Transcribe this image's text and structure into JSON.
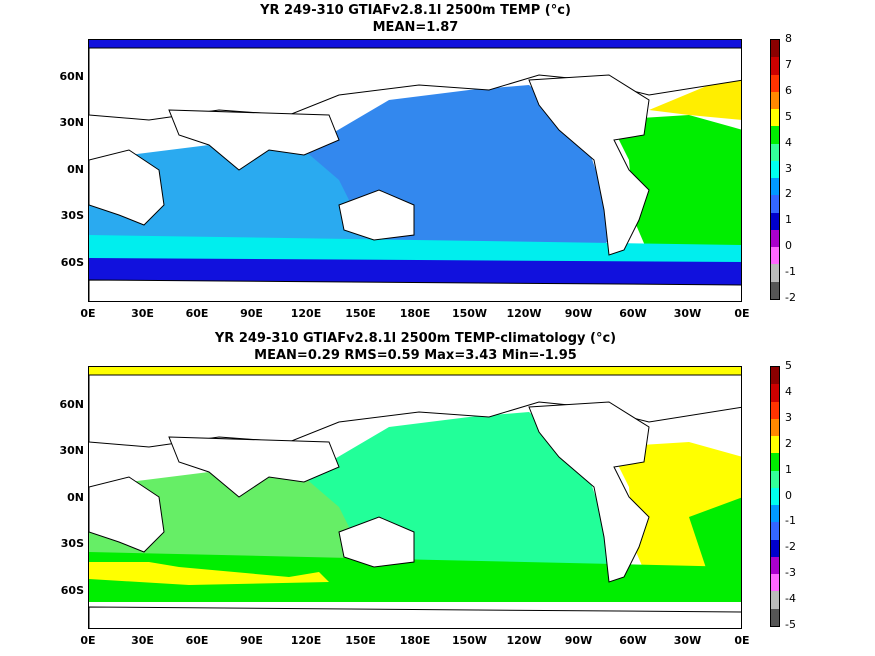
{
  "maps": [
    {
      "title_line1": "YR 249-310 GTIAFv2.8.1l 2500m TEMP (°c)",
      "title_line2": "MEAN=1.87",
      "lat_labels": [
        "60N",
        "30N",
        "0N",
        "30S",
        "60S"
      ],
      "lon_labels": [
        "0E",
        "30E",
        "60E",
        "90E",
        "120E",
        "150E",
        "180E",
        "150W",
        "120W",
        "90W",
        "60W",
        "30W",
        "0E"
      ],
      "colorbar_labels": [
        "8",
        "7",
        "6",
        "5",
        "4",
        "3",
        "2",
        "1",
        "0",
        "-1",
        "-2"
      ],
      "colorbar_colors": [
        "#8b0000",
        "#cc0000",
        "#ff3300",
        "#ff8800",
        "#ffff00",
        "#00ee00",
        "#33ff99",
        "#00ffee",
        "#0099ff",
        "#3366ff",
        "#0000cc",
        "#aa00cc",
        "#ff66ff",
        "#bbbbbb",
        "#555555"
      ]
    },
    {
      "title_line1": "YR 249-310 GTIAFv2.8.1l 2500m TEMP-climatology (°c)",
      "title_line2": "MEAN=0.29   RMS=0.59   Max=3.43   Min=-1.95",
      "lat_labels": [
        "60N",
        "30N",
        "0N",
        "30S",
        "60S"
      ],
      "lon_labels": [
        "0E",
        "30E",
        "60E",
        "90E",
        "120E",
        "150E",
        "180E",
        "150W",
        "120W",
        "90W",
        "60W",
        "30W",
        "0E"
      ],
      "colorbar_labels": [
        "5",
        "4",
        "3",
        "2",
        "1",
        "0",
        "-1",
        "-2",
        "-3",
        "-4",
        "-5"
      ],
      "colorbar_colors": [
        "#8b0000",
        "#cc0000",
        "#ff3300",
        "#ff8800",
        "#ffff00",
        "#00ee00",
        "#33ff99",
        "#00ffee",
        "#0099ff",
        "#3366ff",
        "#0000cc",
        "#aa00cc",
        "#ff66ff",
        "#bbbbbb",
        "#555555"
      ]
    }
  ],
  "colors": {
    "land": "#ffffff",
    "coast": "#000000",
    "top_pacific": "#3388ee",
    "top_indian": "#2aaaf0",
    "top_atlantic": "#00ee00",
    "top_southern": "#00eeee",
    "top_antarctic": "#1111dd",
    "top_nh_atlantic": "#ffee00",
    "bot_pacific": "#22ff99",
    "bot_indian": "#66ee66",
    "bot_atlantic": "#ffff00",
    "bot_southern": "#00ee00"
  }
}
